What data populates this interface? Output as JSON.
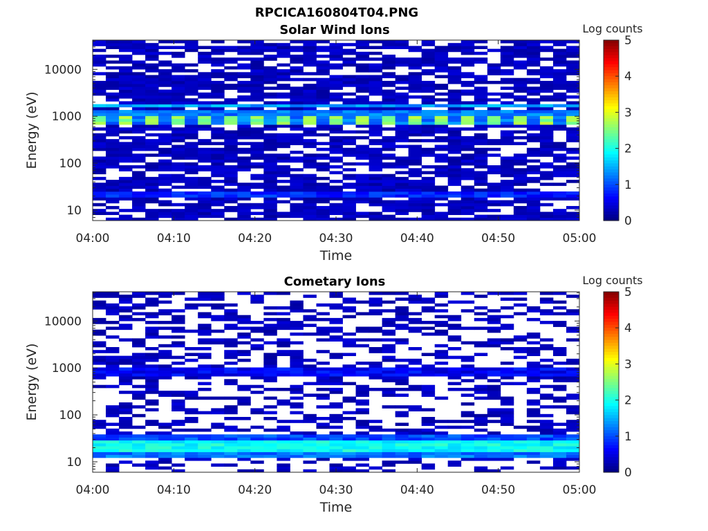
{
  "page_title": "RPCICA160804T04.PNG",
  "chart_data": [
    {
      "type": "heatmap",
      "title": "Solar Wind Ions",
      "xlabel": "Time",
      "ylabel": "Energy (eV)",
      "y_scale": "log",
      "ylim": [
        6,
        42000
      ],
      "xlim": [
        "04:00",
        "05:00"
      ],
      "x_ticks": [
        "04:00",
        "04:10",
        "04:20",
        "04:30",
        "04:40",
        "04:50",
        "05:00"
      ],
      "y_ticks": [
        "10",
        "100",
        "1000",
        "10000"
      ],
      "colorbar": {
        "label": "Log counts",
        "min": 0,
        "max": 5,
        "ticks": [
          "0",
          "1",
          "2",
          "3",
          "4",
          "5"
        ],
        "colormap": "jet"
      },
      "background_value": 0.3,
      "bands": [
        {
          "e_lo": 680,
          "e_hi": 1000,
          "value": 2.6,
          "alt_value": 1.2,
          "alternating": true
        },
        {
          "e_lo": 1000,
          "e_hi": 1350,
          "value": 1.2
        },
        {
          "e_lo": 1550,
          "e_hi": 1900,
          "value": 1.4
        },
        {
          "e_lo": 18,
          "e_hi": 26,
          "value": 0.8
        }
      ],
      "gap_density": 0.28
    },
    {
      "type": "heatmap",
      "title": "Cometary Ions",
      "xlabel": "Time",
      "ylabel": "Energy (eV)",
      "y_scale": "log",
      "ylim": [
        6,
        42000
      ],
      "xlim": [
        "04:00",
        "05:00"
      ],
      "x_ticks": [
        "04:00",
        "04:10",
        "04:20",
        "04:30",
        "04:40",
        "04:50",
        "05:00"
      ],
      "y_ticks": [
        "10",
        "100",
        "1000",
        "10000"
      ],
      "colorbar": {
        "label": "Log counts",
        "min": 0,
        "max": 5,
        "ticks": [
          "0",
          "1",
          "2",
          "3",
          "4",
          "5"
        ],
        "colormap": "jet"
      },
      "background_value": 0.3,
      "bands": [
        {
          "e_lo": 17,
          "e_hi": 30,
          "value": 1.9
        },
        {
          "e_lo": 12,
          "e_hi": 17,
          "value": 1.2
        },
        {
          "e_lo": 30,
          "e_hi": 36,
          "value": 1.0
        },
        {
          "e_lo": 680,
          "e_hi": 1050,
          "value": 0.6
        }
      ],
      "gap_density": 0.6
    }
  ]
}
